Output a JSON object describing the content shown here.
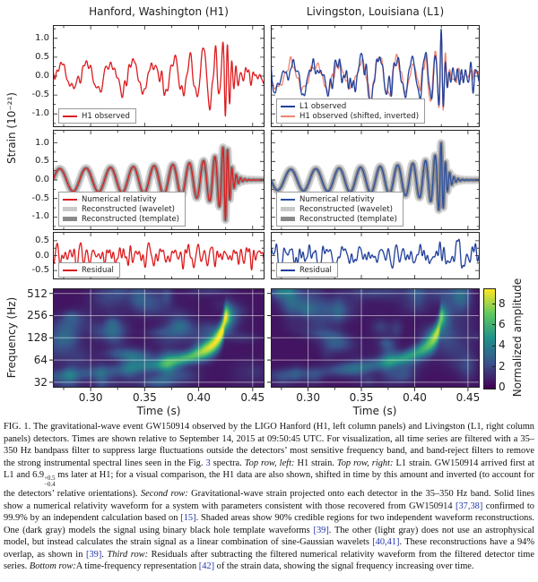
{
  "figure": {
    "titles": {
      "left": "Hanford, Washington (H1)",
      "right": "Livingston, Louisiana (L1)"
    },
    "axis_labels": {
      "strain": "Strain (10⁻²¹)",
      "frequency": "Frequency (Hz)",
      "time": "Time (s)",
      "colorbar": "Normalized amplitude"
    }
  },
  "colors": {
    "h1_red": "#dd1c1f",
    "h1_salmon": "#ee8570",
    "l1_blue": "#21409a",
    "nr_blue": "#2c4fa3",
    "band_light": "#c9c9c9",
    "band_dark": "#8a8a8a",
    "frame": "#222222",
    "link_blue": "#2336a8",
    "grid_white": "rgba(255,255,255,0.5)"
  },
  "chart_data": [
    {
      "id": "h1-observed",
      "type": "line",
      "row": 0,
      "col": "left",
      "xlim": [
        0.265,
        0.461
      ],
      "xticks": [
        0.3,
        0.35,
        0.4,
        0.45
      ],
      "ylim": [
        -1.35,
        1.35
      ],
      "yticks": [
        1.0,
        0.5,
        0.0,
        -0.5,
        -1.0
      ],
      "ytick_labels": [
        "1.0",
        "0.5",
        "0.0",
        "-0.5",
        "-1.0"
      ],
      "show_ytick_labels": true,
      "ylabel": "Strain (10⁻²¹)",
      "legend": [
        {
          "label": "H1 observed",
          "color": "#dd1c1f",
          "kind": "line"
        }
      ],
      "series": [
        {
          "name": "H1 observed",
          "color": "#dd1c1f",
          "kind": "line",
          "generate": "h1_observed"
        }
      ],
      "signal_description": {
        "type": "binary-black-hole chirp + detector noise, bandpassed 35–350 Hz",
        "f_start_hz": 35,
        "f_end_hz": 250,
        "t_merger_s": 0.425,
        "peak_strain_1e21": 1.0,
        "noise_peak_1e21": 0.45,
        "h1_l1_offset_ms": 6.9
      }
    },
    {
      "id": "l1-observed",
      "type": "line",
      "row": 0,
      "col": "right",
      "xlim": [
        0.265,
        0.461
      ],
      "xticks": [
        0.3,
        0.35,
        0.4,
        0.45
      ],
      "ylim": [
        -1.35,
        1.35
      ],
      "yticks": [
        1.0,
        0.5,
        0.0,
        -0.5,
        -1.0
      ],
      "ytick_labels": [],
      "show_ytick_labels": false,
      "legend": [
        {
          "label": "L1 observed",
          "color": "#21409a",
          "kind": "line"
        },
        {
          "label": "H1 observed (shifted, inverted)",
          "color": "#ee8570",
          "kind": "line"
        }
      ],
      "series": [
        {
          "name": "H1 observed (shifted, inverted)",
          "color": "#ee8570",
          "kind": "line",
          "generate": "h1_shifted"
        },
        {
          "name": "L1 observed",
          "color": "#21409a",
          "kind": "line",
          "generate": "l1_observed"
        }
      ]
    },
    {
      "id": "h1-model",
      "type": "line",
      "row": 1,
      "col": "left",
      "xlim": [
        0.265,
        0.461
      ],
      "xticks": [
        0.3,
        0.35,
        0.4,
        0.45
      ],
      "ylim": [
        -1.35,
        1.35
      ],
      "yticks": [
        1.0,
        0.5,
        0.0,
        -0.5,
        -1.0
      ],
      "ytick_labels": [
        "1.0",
        "0.5",
        "0.0",
        "-0.5",
        "-1.0"
      ],
      "show_ytick_labels": true,
      "legend": [
        {
          "label": "Numerical relativity",
          "color": "#dd1c1f",
          "kind": "line"
        },
        {
          "label": "Reconstructed (wavelet)",
          "color": "#c9c9c9",
          "kind": "band"
        },
        {
          "label": "Reconstructed (template)",
          "color": "#8a8a8a",
          "kind": "band"
        }
      ],
      "series": [
        {
          "name": "Reconstructed (wavelet)",
          "color": "#c9c9c9",
          "kind": "band-light",
          "generate": "h1_model"
        },
        {
          "name": "Reconstructed (template)",
          "color": "#8a8a8a",
          "kind": "band-dark",
          "generate": "h1_model"
        },
        {
          "name": "Numerical relativity",
          "color": "#dd1c1f",
          "kind": "line",
          "generate": "h1_model"
        }
      ]
    },
    {
      "id": "l1-model",
      "type": "line",
      "row": 1,
      "col": "right",
      "xlim": [
        0.265,
        0.461
      ],
      "xticks": [
        0.3,
        0.35,
        0.4,
        0.45
      ],
      "ylim": [
        -1.35,
        1.35
      ],
      "yticks": [
        1.0,
        0.5,
        0.0,
        -0.5,
        -1.0
      ],
      "ytick_labels": [],
      "show_ytick_labels": false,
      "legend": [
        {
          "label": "Numerical relativity",
          "color": "#2c4fa3",
          "kind": "line"
        },
        {
          "label": "Reconstructed (wavelet)",
          "color": "#c9c9c9",
          "kind": "band"
        },
        {
          "label": "Reconstructed (template)",
          "color": "#8a8a8a",
          "kind": "band"
        }
      ],
      "series": [
        {
          "name": "Reconstructed (wavelet)",
          "color": "#c9c9c9",
          "kind": "band-light",
          "generate": "l1_model"
        },
        {
          "name": "Reconstructed (template)",
          "color": "#8a8a8a",
          "kind": "band-dark",
          "generate": "l1_model"
        },
        {
          "name": "Numerical relativity",
          "color": "#2c4fa3",
          "kind": "line",
          "generate": "l1_model"
        }
      ]
    },
    {
      "id": "h1-residual",
      "type": "line",
      "row": 2,
      "col": "left",
      "xlim": [
        0.265,
        0.461
      ],
      "xticks": [
        0.3,
        0.35,
        0.4,
        0.45
      ],
      "ylim": [
        -0.8,
        0.8
      ],
      "yticks": [
        0.5,
        0.0,
        -0.5
      ],
      "ytick_labels": [
        "0.5",
        "0.0",
        "-0.5"
      ],
      "show_ytick_labels": true,
      "legend": [
        {
          "label": "Residual",
          "color": "#dd1c1f",
          "kind": "line"
        }
      ],
      "series": [
        {
          "name": "Residual",
          "color": "#dd1c1f",
          "kind": "line",
          "generate": "h1_residual"
        }
      ]
    },
    {
      "id": "l1-residual",
      "type": "line",
      "row": 2,
      "col": "right",
      "xlim": [
        0.265,
        0.461
      ],
      "xticks": [
        0.3,
        0.35,
        0.4,
        0.45
      ],
      "ylim": [
        -0.8,
        0.8
      ],
      "yticks": [
        0.5,
        0.0,
        -0.5
      ],
      "ytick_labels": [],
      "show_ytick_labels": false,
      "legend": [
        {
          "label": "Residual",
          "color": "#21409a",
          "kind": "line"
        }
      ],
      "series": [
        {
          "name": "Residual",
          "color": "#21409a",
          "kind": "line",
          "generate": "l1_residual"
        }
      ]
    },
    {
      "id": "h1-spectrogram",
      "type": "heatmap",
      "row": 3,
      "col": "left",
      "xlim": [
        0.265,
        0.461
      ],
      "xticks": [
        0.3,
        0.35,
        0.4,
        0.45
      ],
      "xtick_labels": [
        "0.30",
        "0.35",
        "0.40",
        "0.45"
      ],
      "xlabel": "Time (s)",
      "yscale": "log2",
      "ylim_hz": [
        27,
        600
      ],
      "yticks_hz": [
        512,
        256,
        128,
        64,
        32
      ],
      "ytick_labels": [
        "512",
        "256",
        "128",
        "64",
        "32"
      ],
      "show_ytick_labels": true,
      "ylabel": "Frequency (Hz)",
      "colormap": "viridis",
      "value_range": [
        0,
        9.5
      ],
      "relative_intensity": 1.0,
      "ridge": {
        "f_at_0.30_hz": 43,
        "f_at_0.35_hz": 52,
        "f_at_0.40_hz": 78,
        "f_at_0.42_hz": 140,
        "t_peak_s": 0.425,
        "peak_value": 9
      }
    },
    {
      "id": "l1-spectrogram",
      "type": "heatmap",
      "row": 3,
      "col": "right",
      "xlim": [
        0.265,
        0.461
      ],
      "xticks": [
        0.3,
        0.35,
        0.4,
        0.45
      ],
      "xtick_labels": [
        "0.30",
        "0.35",
        "0.40",
        "0.45"
      ],
      "xlabel": "Time (s)",
      "yscale": "log2",
      "ylim_hz": [
        27,
        600
      ],
      "yticks_hz": [
        512,
        256,
        128,
        64,
        32
      ],
      "ytick_labels": [],
      "show_ytick_labels": false,
      "colormap": "viridis",
      "value_range": [
        0,
        9.5
      ],
      "relative_intensity": 0.72,
      "ridge": {
        "f_at_0.30_hz": 43,
        "f_at_0.35_hz": 52,
        "f_at_0.40_hz": 78,
        "f_at_0.42_hz": 140,
        "t_peak_s": 0.425,
        "peak_value": 6.5
      }
    },
    {
      "id": "colorbar",
      "type": "colorbar",
      "ticks": [
        0,
        2,
        4,
        6,
        8
      ],
      "label": "Normalized amplitude",
      "range": [
        0,
        9.5
      ],
      "colormap": "viridis",
      "stops": [
        "#440154",
        "#3b528b",
        "#21918c",
        "#5ec962",
        "#fde725"
      ]
    }
  ],
  "caption": {
    "segments": [
      {
        "t": "FIG. 1.   The gravitational-wave event GW150914 observed by the LIGO Hanford (H1, left column panels) and Livingston (L1, right column panels) detectors. Times are shown relative to September 14, 2015 at 09:50:45 UTC. For visualization, all time series are filtered with a 35–350 Hz bandpass filter to suppress large fluctuations outside the detectors’ most sensitive frequency band, and band-reject filters to remove the strong instrumental spectral lines seen in the Fig. "
      },
      {
        "t": "3",
        "s": "link"
      },
      {
        "t": " spectra. "
      },
      {
        "t": "Top row, left:",
        "s": "i"
      },
      {
        "t": " H1 strain. "
      },
      {
        "t": "Top row, right:",
        "s": "i"
      },
      {
        "t": " L1 strain. GW150914 arrived first at L1 and 6.9"
      },
      {
        "sup": "+0.5",
        "sub": "−0.4"
      },
      {
        "t": " ms later at H1; for a visual comparison, the H1 data are also shown, shifted in time by this amount and inverted (to account for the detectors’ relative orientations). "
      },
      {
        "t": "Second row:",
        "s": "i"
      },
      {
        "t": " Gravitational-wave strain projected onto each detector in the 35–350 Hz band. Solid lines show a numerical relativity waveform for a system with parameters consistent with those recovered from GW150914 "
      },
      {
        "t": "[37,38]",
        "s": "link"
      },
      {
        "t": " confirmed to 99.9% by an independent calculation based on "
      },
      {
        "t": "[15]",
        "s": "link"
      },
      {
        "t": ". Shaded areas show 90% credible regions for two independent waveform reconstructions. One (dark gray) models the signal using binary black hole template waveforms "
      },
      {
        "t": "[39]",
        "s": "link"
      },
      {
        "t": ". The other (light gray) does not use an astrophysical model, but instead calculates the strain signal as a linear combination of sine-Gaussian wavelets "
      },
      {
        "t": "[40,41]",
        "s": "link"
      },
      {
        "t": ". These reconstructions have a 94% overlap, as shown in "
      },
      {
        "t": "[39]",
        "s": "link"
      },
      {
        "t": ". "
      },
      {
        "t": "Third row:",
        "s": "i"
      },
      {
        "t": " Residuals after subtracting the filtered numerical relativity waveform from the filtered detector time series. "
      },
      {
        "t": "Bottom row:",
        "s": "i"
      },
      {
        "t": "A time-frequency representation "
      },
      {
        "t": "[42]",
        "s": "link"
      },
      {
        "t": " of the strain data, showing the signal frequency increasing over time."
      }
    ]
  }
}
